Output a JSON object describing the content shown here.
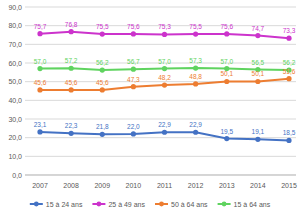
{
  "chart_data": {
    "type": "line",
    "categories": [
      "2007",
      "2008",
      "2009",
      "2010",
      "2011",
      "2012",
      "2013",
      "2014",
      "2015"
    ],
    "series": [
      {
        "name": "15 à 24 ans",
        "color": "#4472c4",
        "values": [
          23.1,
          22.3,
          21.8,
          22.0,
          22.9,
          22.9,
          19.5,
          19.1,
          18.5
        ],
        "value_labels": [
          "23,1",
          "22,3",
          "21,8",
          "22,0",
          "22,9",
          "22,9",
          "19,5",
          "19,1",
          "18,5"
        ]
      },
      {
        "name": "25 à 49 ans",
        "color": "#cc33cc",
        "values": [
          75.7,
          76.8,
          75.5,
          75.6,
          75.3,
          75.5,
          75.6,
          74.7,
          73.3
        ],
        "value_labels": [
          "75,7",
          "76,8",
          "75,5",
          "75,6",
          "75,3",
          "75,5",
          "75,6",
          "74,7",
          "73,3"
        ]
      },
      {
        "name": "50 à 64 ans",
        "color": "#ed7d31",
        "values": [
          45.6,
          45.6,
          45.6,
          47.3,
          48.2,
          48.8,
          50.1,
          50.1,
          51.6
        ],
        "value_labels": [
          "45,6",
          "45,6",
          "45,6",
          "47,3",
          "48,2",
          "48,8",
          "50,1",
          "50,1",
          "51,6"
        ]
      },
      {
        "name": "15 à 64 ans",
        "color": "#5fd35f",
        "values": [
          57.0,
          57.2,
          56.2,
          56.7,
          57.0,
          57.3,
          57.0,
          56.5,
          56.2
        ],
        "value_labels": [
          "57,0",
          "57,2",
          "56,2",
          "56,7",
          "57,0",
          "57,3",
          "57,0",
          "56,5",
          "56,2"
        ]
      }
    ],
    "ylim": [
      0,
      90
    ],
    "yticks": [
      {
        "value": 0,
        "label": "0,0"
      },
      {
        "value": 10,
        "label": "10,0"
      },
      {
        "value": 20,
        "label": "20,0"
      },
      {
        "value": 30,
        "label": "30,0"
      },
      {
        "value": 40,
        "label": "40,0"
      },
      {
        "value": 50,
        "label": "50,0"
      },
      {
        "value": 60,
        "label": "60,0"
      },
      {
        "value": 70,
        "label": "70,0"
      },
      {
        "value": 80,
        "label": "80,0"
      },
      {
        "value": 90,
        "label": "90,0"
      }
    ],
    "grid": true,
    "legend": "bottom",
    "marker": "circle",
    "data_labels": true
  }
}
